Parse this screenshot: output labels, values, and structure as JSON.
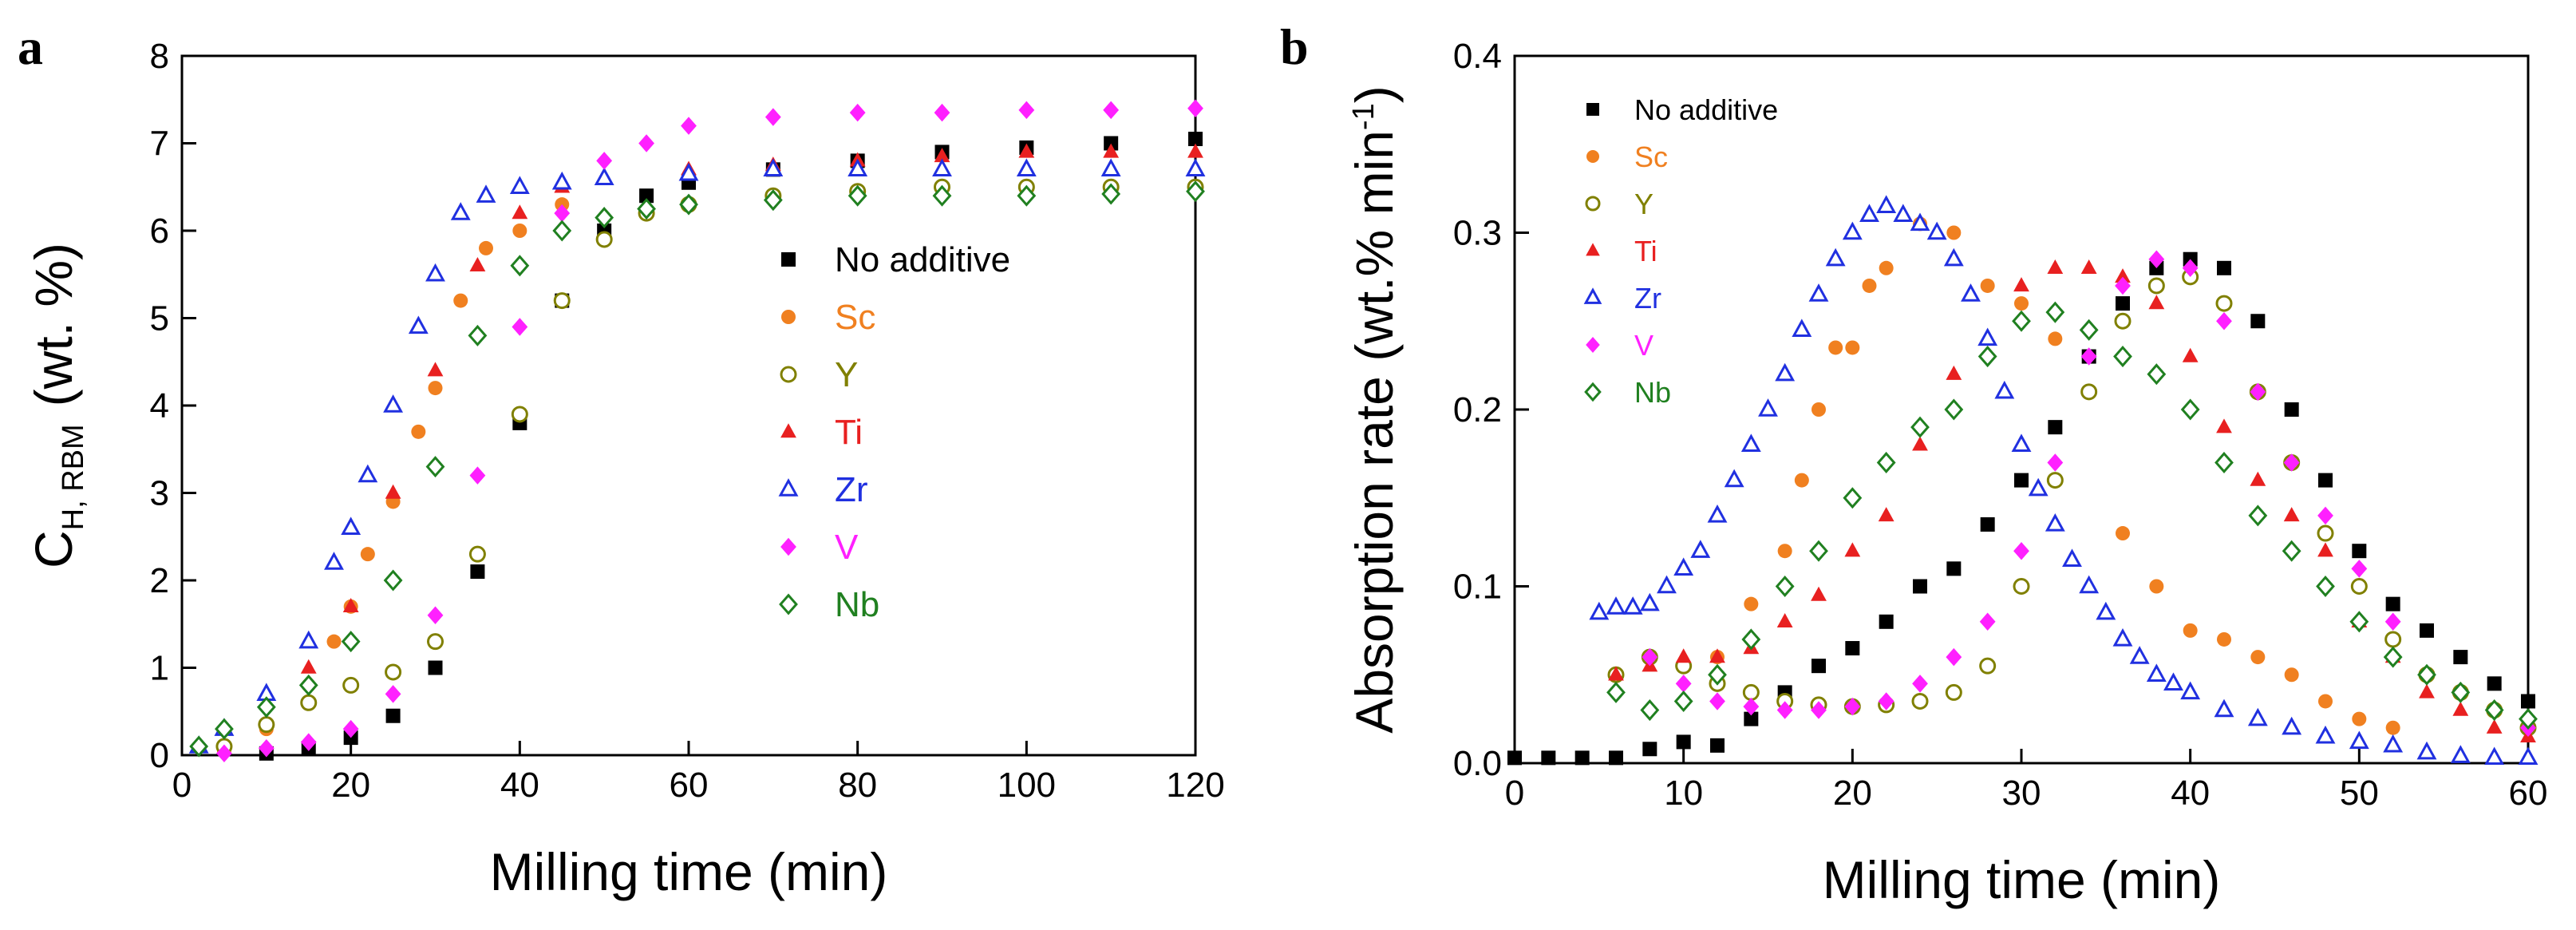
{
  "chart_data": [
    {
      "type": "scatter",
      "panel": "a",
      "xlabel": "Milling time (min)",
      "ylabel_main": "C",
      "ylabel_sub": "H, RBM",
      "ylabel_unit": "(wt. %)",
      "xlim": [
        0,
        120
      ],
      "ylim": [
        0,
        8
      ],
      "xticks": [
        "0",
        "20",
        "40",
        "60",
        "80",
        "100",
        "120"
      ],
      "yticks": [
        "0",
        "1",
        "2",
        "3",
        "4",
        "5",
        "6",
        "7",
        "8"
      ],
      "legend_position": "middle-right",
      "series": [
        {
          "name": "No additive",
          "color": "#000000",
          "marker": "square",
          "x": [
            10,
            15,
            20,
            25,
            30,
            35,
            40,
            45,
            50,
            55,
            60,
            70,
            80,
            90,
            100,
            110,
            120
          ],
          "y": [
            0.02,
            0.08,
            0.2,
            0.45,
            1.0,
            2.1,
            3.8,
            5.2,
            6.0,
            6.4,
            6.55,
            6.7,
            6.8,
            6.9,
            6.95,
            7.0,
            7.05
          ]
        },
        {
          "name": "Sc",
          "color": "#f08020",
          "marker": "circle",
          "x": [
            5,
            10,
            15,
            18,
            20,
            22,
            25,
            28,
            30,
            33,
            36,
            40,
            45
          ],
          "y": [
            0.05,
            0.3,
            0.8,
            1.3,
            1.7,
            2.3,
            2.9,
            3.7,
            4.2,
            5.2,
            5.8,
            6.0,
            6.3
          ]
        },
        {
          "name": "Y",
          "color": "#808000",
          "marker": "circle-open",
          "x": [
            5,
            10,
            15,
            20,
            25,
            30,
            35,
            40,
            45,
            50,
            55,
            60,
            70,
            80,
            90,
            100,
            110,
            120
          ],
          "y": [
            0.1,
            0.35,
            0.6,
            0.8,
            0.95,
            1.3,
            2.3,
            3.9,
            5.2,
            5.9,
            6.2,
            6.3,
            6.4,
            6.45,
            6.5,
            6.5,
            6.5,
            6.5
          ]
        },
        {
          "name": "Ti",
          "color": "#e82020",
          "marker": "triangle",
          "x": [
            2,
            5,
            10,
            15,
            20,
            25,
            30,
            35,
            40,
            45,
            50,
            60,
            70,
            80,
            90,
            100,
            110,
            120
          ],
          "y": [
            0.1,
            0.3,
            0.6,
            1.0,
            1.7,
            3.0,
            4.4,
            5.6,
            6.2,
            6.5,
            6.6,
            6.7,
            6.75,
            6.8,
            6.85,
            6.9,
            6.9,
            6.9
          ]
        },
        {
          "name": "Zr",
          "color": "#2030e0",
          "marker": "triangle-open",
          "x": [
            2,
            5,
            10,
            15,
            18,
            20,
            22,
            25,
            28,
            30,
            33,
            36,
            40,
            45,
            50,
            60,
            70,
            80,
            90,
            100,
            110,
            120
          ],
          "y": [
            0.1,
            0.3,
            0.7,
            1.3,
            2.2,
            2.6,
            3.2,
            4.0,
            4.9,
            5.5,
            6.2,
            6.4,
            6.5,
            6.55,
            6.6,
            6.65,
            6.7,
            6.7,
            6.7,
            6.7,
            6.7,
            6.7
          ]
        },
        {
          "name": "V",
          "color": "#ff20ff",
          "marker": "diamond",
          "x": [
            5,
            10,
            15,
            20,
            25,
            30,
            35,
            40,
            45,
            50,
            55,
            60,
            70,
            80,
            90,
            100,
            110,
            120
          ],
          "y": [
            0.02,
            0.08,
            0.15,
            0.3,
            0.7,
            1.6,
            3.2,
            4.9,
            6.2,
            6.8,
            7.0,
            7.2,
            7.3,
            7.35,
            7.35,
            7.38,
            7.38,
            7.4
          ]
        },
        {
          "name": "Nb",
          "color": "#208020",
          "marker": "diamond-open",
          "x": [
            2,
            5,
            10,
            15,
            20,
            25,
            30,
            35,
            40,
            45,
            50,
            55,
            60,
            70,
            80,
            90,
            100,
            110,
            120
          ],
          "y": [
            0.1,
            0.3,
            0.55,
            0.8,
            1.3,
            2.0,
            3.3,
            4.8,
            5.6,
            6.0,
            6.15,
            6.25,
            6.3,
            6.35,
            6.4,
            6.4,
            6.4,
            6.42,
            6.45
          ]
        }
      ]
    },
    {
      "type": "scatter",
      "panel": "b",
      "xlabel": "Milling time (min)",
      "ylabel_main": "Absorption rate (wt.% min",
      "ylabel_sup": "-1",
      "ylabel_close": ")",
      "xlim": [
        0,
        60
      ],
      "ylim": [
        0,
        0.4
      ],
      "xticks": [
        "0",
        "10",
        "20",
        "30",
        "40",
        "50",
        "60"
      ],
      "yticks": [
        "0.0",
        "0.1",
        "0.2",
        "0.3",
        "0.4"
      ],
      "legend_position": "top-left",
      "series": [
        {
          "name": "No additive",
          "color": "#000000",
          "marker": "square",
          "x": [
            0,
            2,
            4,
            6,
            8,
            10,
            12,
            14,
            16,
            18,
            20,
            22,
            24,
            26,
            28,
            30,
            32,
            34,
            36,
            38,
            40,
            42,
            44,
            46,
            48,
            50,
            52,
            54,
            56,
            58,
            60
          ],
          "y": [
            0.003,
            0.003,
            0.003,
            0.003,
            0.008,
            0.012,
            0.01,
            0.025,
            0.04,
            0.055,
            0.065,
            0.08,
            0.1,
            0.11,
            0.135,
            0.16,
            0.19,
            0.23,
            0.26,
            0.28,
            0.285,
            0.28,
            0.25,
            0.2,
            0.16,
            0.12,
            0.09,
            0.075,
            0.06,
            0.045,
            0.035
          ]
        },
        {
          "name": "Sc",
          "color": "#f08020",
          "marker": "circle",
          "x": [
            6,
            8,
            10,
            12,
            14,
            16,
            17,
            18,
            19,
            20,
            21,
            22,
            24,
            26,
            28,
            30,
            32,
            34,
            36,
            38,
            40,
            42,
            44,
            46,
            48,
            50,
            52
          ],
          "y": [
            0.05,
            0.06,
            0.055,
            0.06,
            0.09,
            0.12,
            0.16,
            0.2,
            0.235,
            0.235,
            0.27,
            0.28,
            0.305,
            0.3,
            0.27,
            0.26,
            0.24,
            0.21,
            0.13,
            0.1,
            0.075,
            0.07,
            0.06,
            0.05,
            0.035,
            0.025,
            0.02
          ]
        },
        {
          "name": "Y",
          "color": "#808000",
          "marker": "circle-open",
          "x": [
            6,
            8,
            10,
            12,
            14,
            16,
            18,
            20,
            22,
            24,
            26,
            28,
            30,
            32,
            34,
            36,
            38,
            40,
            42,
            44,
            46,
            48,
            50,
            52,
            54,
            56,
            58,
            60
          ],
          "y": [
            0.05,
            0.06,
            0.055,
            0.045,
            0.04,
            0.035,
            0.033,
            0.032,
            0.033,
            0.035,
            0.04,
            0.055,
            0.1,
            0.16,
            0.21,
            0.25,
            0.27,
            0.275,
            0.26,
            0.21,
            0.17,
            0.13,
            0.1,
            0.07,
            0.05,
            0.04,
            0.03,
            0.02
          ]
        },
        {
          "name": "Ti",
          "color": "#e82020",
          "marker": "triangle",
          "x": [
            6,
            8,
            10,
            12,
            14,
            16,
            18,
            20,
            22,
            24,
            26,
            28,
            30,
            32,
            34,
            36,
            38,
            40,
            42,
            44,
            46,
            48,
            50,
            52,
            54,
            56,
            58,
            60
          ],
          "y": [
            0.05,
            0.055,
            0.06,
            0.06,
            0.065,
            0.08,
            0.095,
            0.12,
            0.14,
            0.18,
            0.22,
            0.24,
            0.27,
            0.28,
            0.28,
            0.275,
            0.26,
            0.23,
            0.19,
            0.16,
            0.14,
            0.12,
            0.08,
            0.06,
            0.04,
            0.03,
            0.02,
            0.015
          ]
        },
        {
          "name": "Zr",
          "color": "#2030e0",
          "marker": "triangle-open",
          "x": [
            5,
            6,
            7,
            8,
            9,
            10,
            11,
            12,
            13,
            14,
            15,
            16,
            17,
            18,
            19,
            20,
            21,
            22,
            23,
            24,
            25,
            26,
            27,
            28,
            29,
            30,
            31,
            32,
            33,
            34,
            35,
            36,
            37,
            38,
            39,
            40,
            42,
            44,
            46,
            48,
            50,
            52,
            54,
            56,
            58,
            60
          ],
          "y": [
            0.085,
            0.088,
            0.088,
            0.09,
            0.1,
            0.11,
            0.12,
            0.14,
            0.16,
            0.18,
            0.2,
            0.22,
            0.245,
            0.265,
            0.285,
            0.3,
            0.31,
            0.315,
            0.31,
            0.305,
            0.3,
            0.285,
            0.265,
            0.24,
            0.21,
            0.18,
            0.155,
            0.135,
            0.115,
            0.1,
            0.085,
            0.07,
            0.06,
            0.05,
            0.045,
            0.04,
            0.03,
            0.025,
            0.02,
            0.015,
            0.012,
            0.01,
            0.006,
            0.004,
            0.003,
            0.003
          ]
        },
        {
          "name": "V",
          "color": "#ff20ff",
          "marker": "diamond",
          "x": [
            8,
            10,
            12,
            14,
            16,
            18,
            20,
            22,
            24,
            26,
            28,
            30,
            32,
            34,
            36,
            38,
            40,
            42,
            44,
            46,
            48,
            50,
            52,
            54,
            56,
            58,
            60
          ],
          "y": [
            0.06,
            0.045,
            0.035,
            0.032,
            0.03,
            0.03,
            0.032,
            0.035,
            0.045,
            0.06,
            0.08,
            0.12,
            0.17,
            0.23,
            0.27,
            0.285,
            0.28,
            0.25,
            0.21,
            0.17,
            0.14,
            0.11,
            0.08,
            0.05,
            0.04,
            0.03,
            0.02
          ]
        },
        {
          "name": "Nb",
          "color": "#208020",
          "marker": "diamond-open",
          "x": [
            6,
            8,
            10,
            12,
            14,
            16,
            18,
            20,
            22,
            24,
            26,
            28,
            30,
            32,
            34,
            36,
            38,
            40,
            42,
            44,
            46,
            48,
            50,
            52,
            54,
            56,
            58,
            60
          ],
          "y": [
            0.04,
            0.03,
            0.035,
            0.05,
            0.07,
            0.1,
            0.12,
            0.15,
            0.17,
            0.19,
            0.2,
            0.23,
            0.25,
            0.255,
            0.245,
            0.23,
            0.22,
            0.2,
            0.17,
            0.14,
            0.12,
            0.1,
            0.08,
            0.06,
            0.05,
            0.04,
            0.03,
            0.025
          ]
        }
      ]
    }
  ]
}
